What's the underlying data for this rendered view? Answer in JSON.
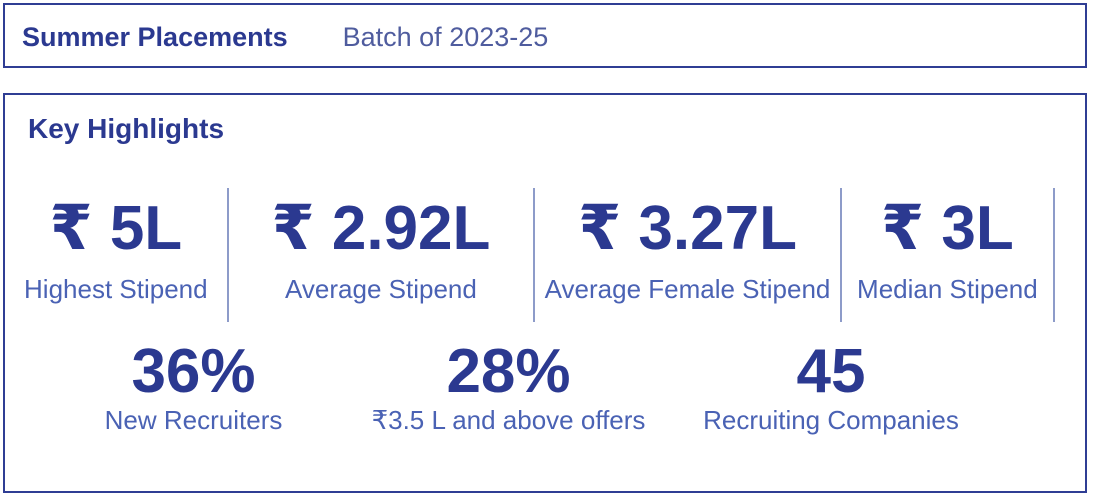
{
  "header": {
    "title": "Summer Placements",
    "batch": "Batch of 2023-25"
  },
  "highlights": {
    "section_title": "Key Highlights",
    "row1": [
      {
        "value": "₹ 5L",
        "label": "Highest Stipend"
      },
      {
        "value": "₹ 2.92L",
        "label": "Average Stipend"
      },
      {
        "value": "₹ 3.27L",
        "label": "Average Female Stipend"
      },
      {
        "value": "₹ 3L",
        "label": "Median Stipend"
      }
    ],
    "row2": [
      {
        "value": "36%",
        "label": "New Recruiters"
      },
      {
        "value": "28%",
        "label": "₹3.5 L and above offers"
      },
      {
        "value": "45",
        "label": "Recruiting Companies"
      }
    ]
  },
  "colors": {
    "primary": "#2b3990",
    "label_blue": "#4a62b4",
    "batch_text": "#4f5c9e",
    "divider": "#8d9bc9",
    "border": "#2f3d94",
    "background": "#ffffff"
  }
}
